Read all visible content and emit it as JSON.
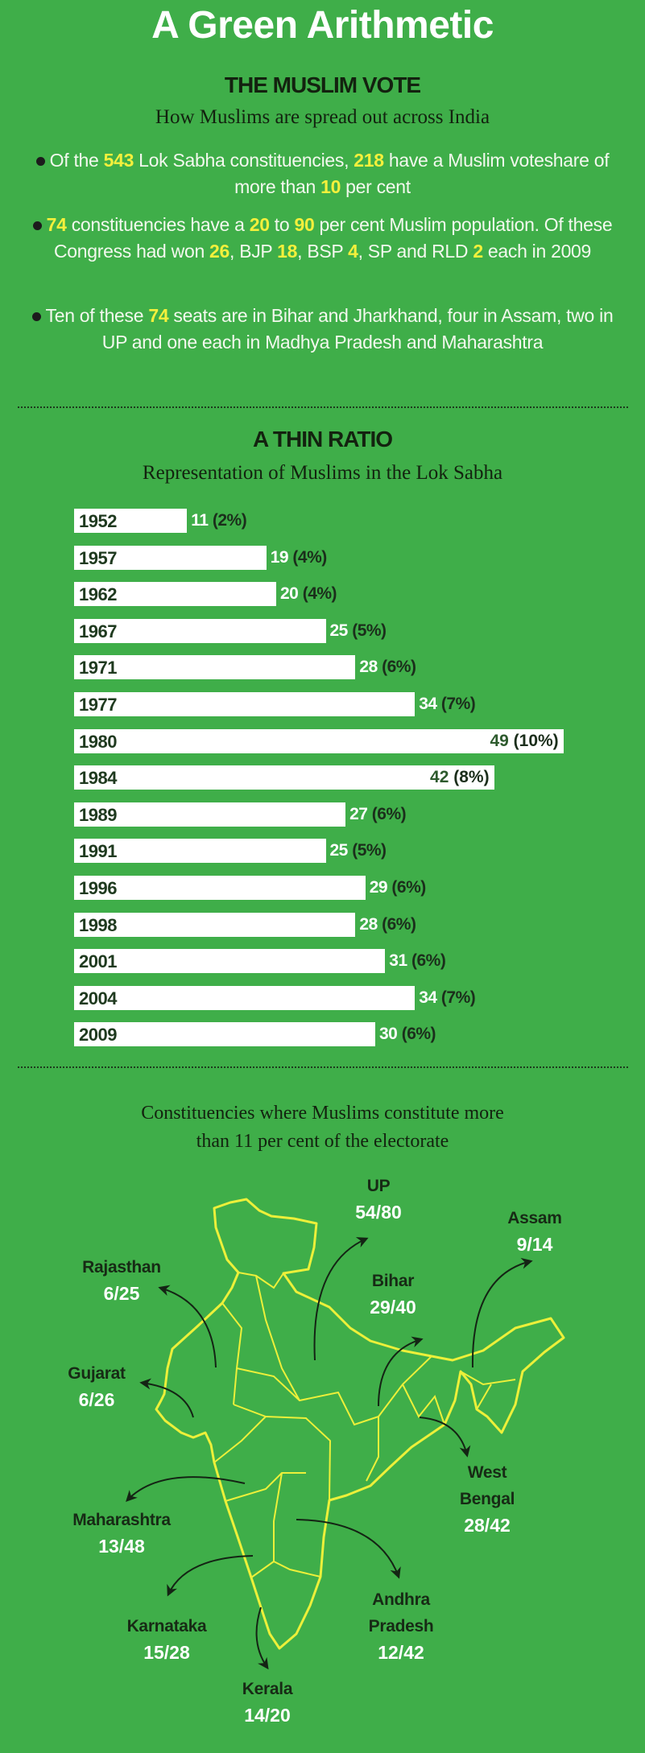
{
  "title": "A Green Arithmetic",
  "section1": {
    "heading": "THE MUSLIM VOTE",
    "subtitle": "How Muslims are spread out across India",
    "bullets": [
      [
        {
          "t": "Of the "
        },
        {
          "t": "543",
          "hl": true
        },
        {
          "t": " Lok Sabha constituencies, "
        },
        {
          "t": "218",
          "hl": true
        },
        {
          "t": " have a Muslim voteshare of more than "
        },
        {
          "t": "10",
          "hl": true
        },
        {
          "t": " per cent"
        }
      ],
      [
        {
          "t": "74",
          "hl": true
        },
        {
          "t": " constituencies have a "
        },
        {
          "t": "20",
          "hl": true
        },
        {
          "t": " to "
        },
        {
          "t": "90",
          "hl": true
        },
        {
          "t": " per cent Muslim population. Of these Congress had won "
        },
        {
          "t": "26",
          "hl": true
        },
        {
          "t": ", BJP "
        },
        {
          "t": "18",
          "hl": true
        },
        {
          "t": ", BSP "
        },
        {
          "t": "4",
          "hl": true
        },
        {
          "t": ", SP and RLD "
        },
        {
          "t": "2",
          "hl": true
        },
        {
          "t": " each in 2009"
        }
      ],
      [
        {
          "t": "Ten of these "
        },
        {
          "t": "74",
          "hl": true
        },
        {
          "t": " seats are in Bihar and Jharkhand, four in Assam, two in UP and one each in Madhya Pradesh and Maharashtra"
        }
      ]
    ]
  },
  "chart_data": {
    "type": "bar",
    "orientation": "horizontal",
    "title": "A THIN RATIO",
    "subtitle": "Representation of Muslims in the Lok Sabha",
    "xlabel": "",
    "ylabel": "",
    "categories": [
      "1952",
      "1957",
      "1962",
      "1967",
      "1971",
      "1977",
      "1980",
      "1984",
      "1989",
      "1991",
      "1996",
      "1998",
      "2001",
      "2004",
      "2009"
    ],
    "values": [
      11,
      19,
      20,
      25,
      28,
      34,
      49,
      42,
      27,
      25,
      29,
      28,
      31,
      34,
      30
    ],
    "labels_pct": [
      "(2%)",
      "(4%)",
      "(4%)",
      "(5%)",
      "(6%)",
      "(7%)",
      "(10%)",
      "(8%)",
      "(6%)",
      "(5%)",
      "(6%)",
      "(6%)",
      "(6%)",
      "(7%)",
      "(6%)"
    ],
    "xlim": [
      0,
      50
    ]
  },
  "map": {
    "caption": [
      "Constituencies where Muslims constitute more",
      "than 11 per cent of the electorate"
    ],
    "states": [
      {
        "name": "UP",
        "value": "54/80"
      },
      {
        "name": "Assam",
        "value": "9/14"
      },
      {
        "name": "Rajasthan",
        "value": "6/25"
      },
      {
        "name": "Bihar",
        "value": "29/40"
      },
      {
        "name": "Gujarat",
        "value": "6/26"
      },
      {
        "name": "West Bengal",
        "value": "28/42"
      },
      {
        "name": "Maharashtra",
        "value": "13/48"
      },
      {
        "name": "Andhra Pradesh",
        "value": "12/42"
      },
      {
        "name": "Karnataka",
        "value": "15/28"
      },
      {
        "name": "Kerala",
        "value": "14/20"
      }
    ]
  },
  "colors": {
    "background": "#3fae49",
    "highlight": "#f4f03c",
    "map_outline": "#ecf03a",
    "arrow": "#142414"
  }
}
